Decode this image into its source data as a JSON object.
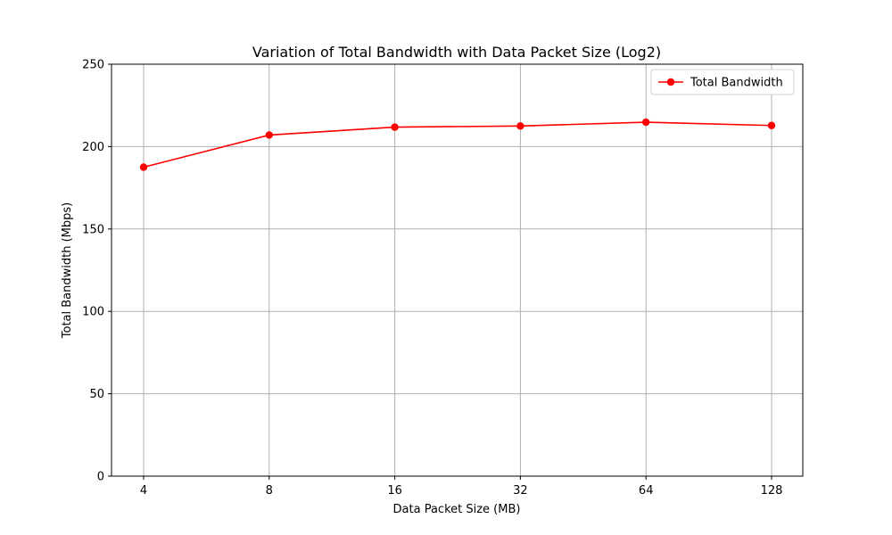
{
  "chart_data": {
    "type": "line",
    "title": "Variation of Total Bandwidth with Data Packet Size (Log2)",
    "xlabel": "Data Packet Size (MB)",
    "ylabel": "Total Bandwidth (Mbps)",
    "x_scale": "log2",
    "x": [
      4,
      8,
      16,
      32,
      64,
      128
    ],
    "x_tick_labels": [
      "4",
      "8",
      "16",
      "32",
      "64",
      "128"
    ],
    "y_ticks": [
      0,
      50,
      100,
      150,
      200,
      250
    ],
    "ylim": [
      0,
      250
    ],
    "grid": true,
    "legend_position": "top-right",
    "series": [
      {
        "name": "Total Bandwidth",
        "color": "#ff0000",
        "marker": "circle",
        "values": [
          187.5,
          207,
          211.8,
          212.5,
          214.8,
          212.8
        ]
      }
    ]
  }
}
